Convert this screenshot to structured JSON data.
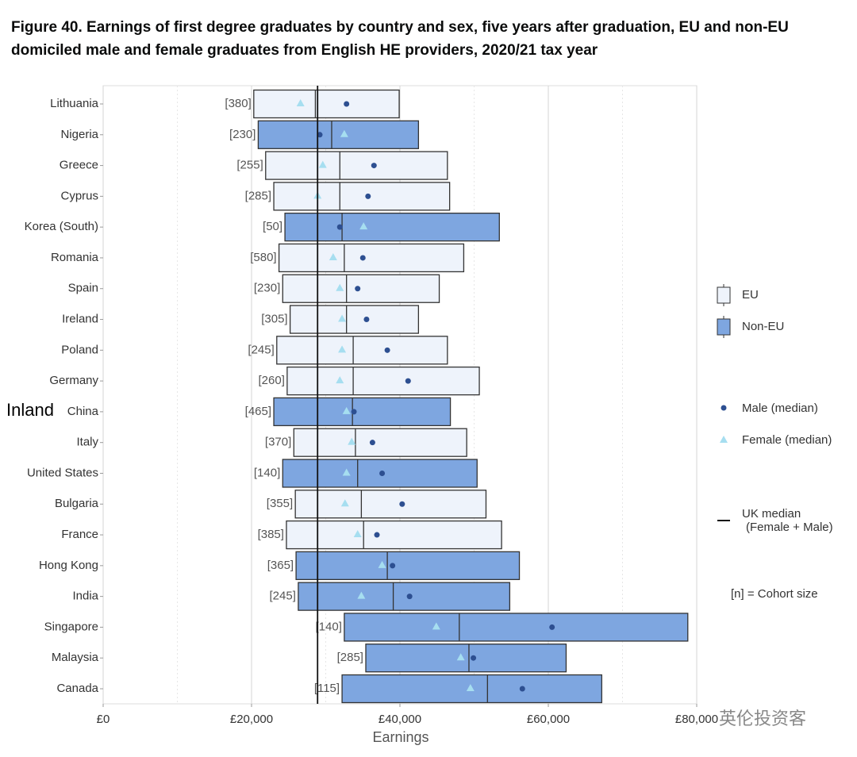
{
  "chart_data": {
    "type": "floating_box",
    "title": "Figure 40. Earnings of first degree graduates by country and sex, five years after graduation, EU and non-EU domiciled male and female graduates from English HE providers, 2020/21 tax year",
    "x_label": "Earnings",
    "categories": [
      "Lithuania",
      "Nigeria",
      "Greece",
      "Cyprus",
      "Korea (South)",
      "Romania",
      "Spain",
      "Ireland",
      "Poland",
      "Germany",
      "China",
      "Italy",
      "United States",
      "Bulgaria",
      "France",
      "Hong Kong",
      "India",
      "Singapore",
      "Malaysia",
      "Canada"
    ],
    "group": [
      "EU",
      "Non-EU",
      "EU",
      "EU",
      "Non-EU",
      "EU",
      "EU",
      "EU",
      "EU",
      "EU",
      "Non-EU",
      "EU",
      "Non-EU",
      "EU",
      "EU",
      "Non-EU",
      "Non-EU",
      "Non-EU",
      "Non-EU",
      "Non-EU"
    ],
    "lower": [
      20300,
      20900,
      21900,
      23000,
      24500,
      23700,
      24200,
      25200,
      23400,
      24800,
      23000,
      25700,
      24200,
      25900,
      24700,
      26000,
      26300,
      32500,
      35400,
      32200
    ],
    "median": [
      28600,
      30800,
      31900,
      31900,
      32200,
      32500,
      32800,
      32800,
      33700,
      33700,
      33600,
      34000,
      34300,
      34800,
      35100,
      38300,
      39100,
      48000,
      49300,
      51800
    ],
    "upper": [
      39900,
      42500,
      46400,
      46700,
      53400,
      48600,
      45300,
      42500,
      46400,
      50700,
      46800,
      49000,
      50400,
      51600,
      53700,
      56100,
      54800,
      78800,
      62400,
      67200
    ],
    "male_median": [
      32800,
      29200,
      36500,
      35700,
      31900,
      35000,
      34300,
      35500,
      38300,
      41100,
      33800,
      36300,
      37600,
      40300,
      36900,
      39000,
      41300,
      60500,
      49900,
      56500
    ],
    "female_median": [
      26600,
      32500,
      29600,
      28900,
      35100,
      31000,
      31900,
      32200,
      32200,
      31900,
      32800,
      33500,
      32800,
      32600,
      34300,
      37600,
      34800,
      44900,
      48200,
      49500
    ],
    "cohort_labels": [
      "[380]",
      "[230]",
      "[255]",
      "[285]",
      "[50]",
      "[580]",
      "[230]",
      "[305]",
      "[245]",
      "[260]",
      "[465]",
      "[370]",
      "[140]",
      "[355]",
      "[385]",
      "[365]",
      "[245]",
      "[140]",
      "[285]",
      "[115]"
    ],
    "series": [
      {
        "name": "EU",
        "color": "#eef3fb"
      },
      {
        "name": "Non-EU",
        "color": "#7ea6e0"
      }
    ],
    "male": {
      "name": "Male (median)",
      "color": "#2d4f91"
    },
    "female": {
      "name": "Female (median)",
      "color": "#a6def0"
    },
    "uk_median": {
      "value": 28900,
      "label": [
        "UK median",
        "(Female + Male)"
      ]
    },
    "note": "[n] = Cohort size",
    "xlim": [
      0,
      80000
    ],
    "xticks": [
      {
        "value": 0,
        "label": "£0"
      },
      {
        "value": 20000,
        "label": "£20,000"
      },
      {
        "value": 40000,
        "label": "£40,000"
      },
      {
        "value": 60000,
        "label": "£60,000"
      },
      {
        "value": 80000,
        "label": "£80,000"
      }
    ],
    "minor_xticks": [
      10000,
      30000,
      50000,
      70000
    ],
    "grid": true,
    "legend_position": "right"
  },
  "overlay_text": "Inland",
  "watermark": "英伦投资客"
}
